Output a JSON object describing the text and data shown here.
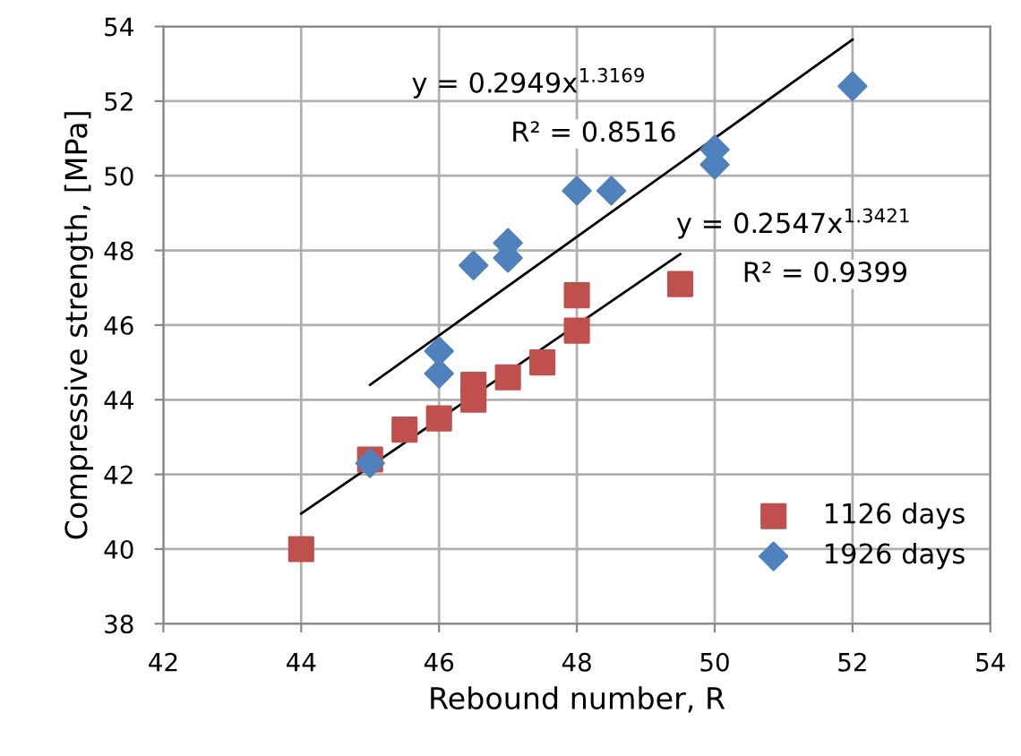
{
  "chart_data": {
    "type": "scatter",
    "xlabel": "Rebound number, R",
    "ylabel": "Compressive strength, [MPa]",
    "xlim": [
      42,
      54
    ],
    "xticks": [
      42,
      44,
      46,
      48,
      50,
      52,
      54
    ],
    "ylim": [
      38,
      54
    ],
    "yticks": [
      38,
      40,
      42,
      44,
      46,
      48,
      50,
      52,
      54
    ],
    "grid": true,
    "legend": "bottom right",
    "series": [
      {
        "name": "1126 days",
        "color": "#c0504d",
        "marker": "square",
        "x": [
          44.0,
          45.0,
          45.5,
          46.0,
          46.5,
          46.5,
          47.0,
          47.5,
          48.0,
          48.0,
          49.5
        ],
        "values": [
          40.0,
          42.4,
          43.2,
          43.5,
          44.0,
          44.4,
          44.6,
          45.0,
          45.85,
          46.8,
          47.1
        ]
      },
      {
        "name": "1926 days",
        "color": "#4f81bd",
        "marker": "diamond",
        "x": [
          45.0,
          46.0,
          46.0,
          46.5,
          47.0,
          47.0,
          48.0,
          48.5,
          50.0,
          50.0,
          52.0
        ],
        "values": [
          42.3,
          44.7,
          45.3,
          47.6,
          47.8,
          48.2,
          49.6,
          49.6,
          50.7,
          50.3,
          52.4
        ]
      },
      {
        "type": "line",
        "color": "#000000",
        "marker": "none",
        "x": [
          44.0,
          49.5
        ],
        "values": [
          40.95,
          47.9
        ]
      },
      {
        "type": "line",
        "color": "#000000",
        "marker": "none",
        "x": [
          45.0,
          52.0
        ],
        "values": [
          44.4,
          53.65
        ]
      }
    ],
    "annotations": [
      "y = 0.2949x$^{1.3169}$",
      "R² = 0.8516",
      "y = 0.2547x$^{1.3421}$",
      "R² = 0.9399"
    ]
  }
}
